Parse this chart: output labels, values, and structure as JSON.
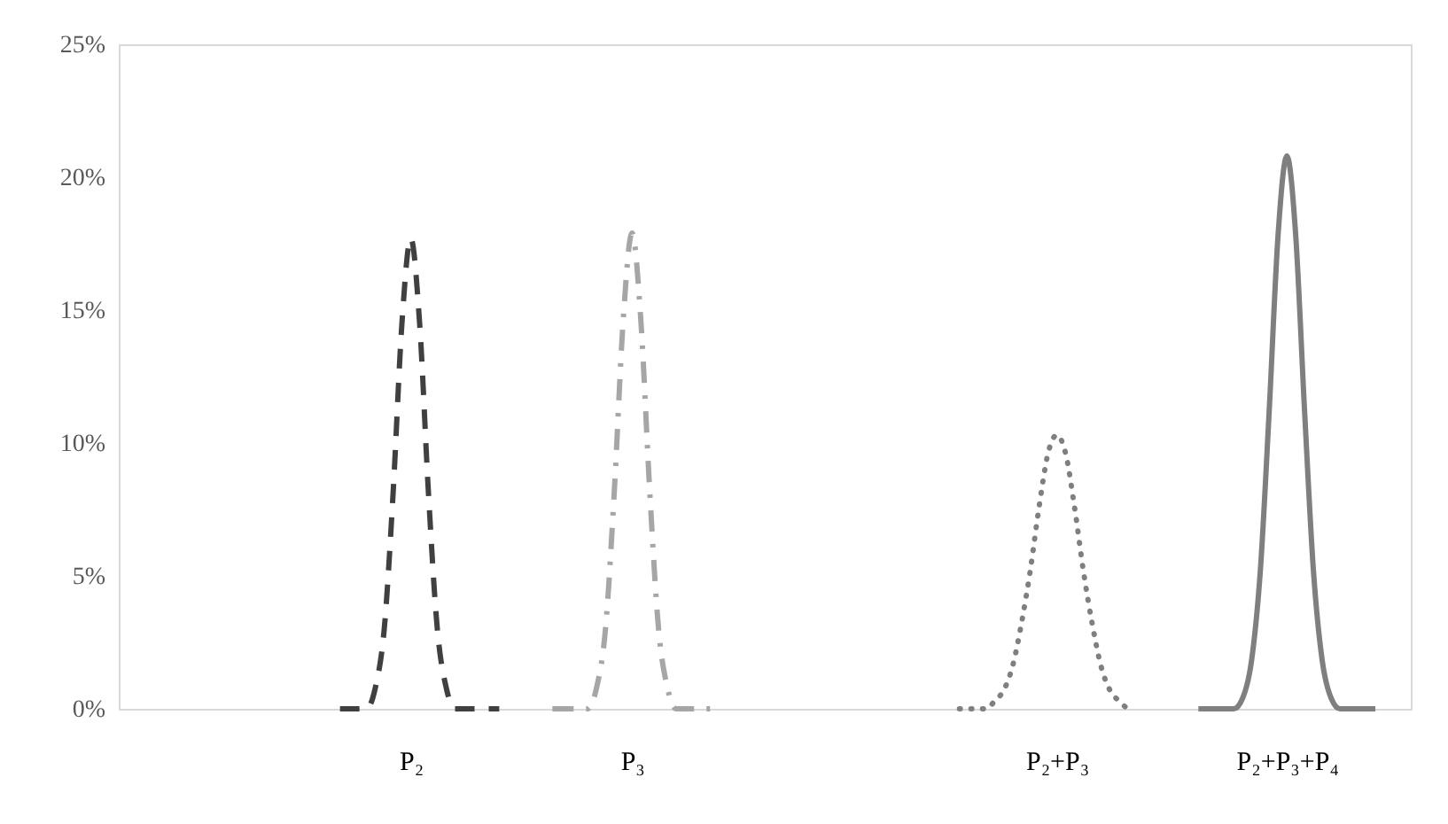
{
  "chart_data": {
    "type": "line",
    "categories": [
      null,
      null,
      null,
      null,
      null,
      null,
      null,
      null,
      null,
      null,
      null,
      null,
      null,
      null,
      null,
      null,
      null,
      null,
      null,
      null,
      null,
      null,
      null,
      null,
      null,
      null,
      null,
      null,
      null,
      null,
      null,
      null,
      null,
      "P₂",
      null,
      null,
      null,
      null,
      null,
      null,
      null,
      null,
      null,
      null,
      null,
      null,
      null,
      null,
      null,
      null,
      null,
      null,
      null,
      null,
      null,
      null,
      null,
      null,
      "P₃",
      null,
      null,
      null,
      null,
      null,
      null,
      null,
      null,
      null,
      null,
      null,
      null,
      null,
      null,
      null,
      null,
      null,
      null,
      null,
      null,
      null,
      null,
      null,
      null,
      null,
      null,
      null,
      null,
      null,
      null,
      null,
      null,
      null,
      null,
      null,
      null,
      null,
      null,
      null,
      null,
      null,
      null,
      null,
      null,
      null,
      null,
      null,
      "P₂+P₃",
      null,
      null,
      null,
      null,
      null,
      null,
      null,
      null,
      null,
      null,
      null,
      null,
      null,
      null,
      null,
      null,
      null,
      null,
      null,
      null,
      null,
      null,
      null,
      null,
      null,
      "P₂+P₃+P₄",
      null,
      null,
      null,
      null,
      null,
      null,
      null,
      null,
      null,
      null,
      null,
      null,
      null,
      null
    ],
    "series": [
      {
        "color": "#404040",
        "line_style": "dashed",
        "values": [
          null,
          null,
          null,
          null,
          null,
          null,
          null,
          null,
          null,
          null,
          null,
          null,
          null,
          null,
          null,
          null,
          null,
          null,
          null,
          null,
          null,
          null,
          null,
          null,
          null,
          0,
          0,
          0,
          0,
          0.8,
          3.0,
          8.1,
          14.5,
          17.7,
          14.5,
          8.1,
          3.0,
          0.8,
          0,
          0,
          0,
          0,
          0,
          0,
          null,
          null,
          null,
          null,
          null,
          null,
          null,
          null,
          null,
          null,
          null,
          null,
          null,
          null,
          null,
          null,
          null,
          null,
          null,
          null,
          null,
          null,
          null,
          null,
          null,
          null,
          null,
          null,
          null,
          null,
          null,
          null,
          null,
          null,
          null,
          null,
          null,
          null,
          null,
          null,
          null,
          null,
          null,
          null,
          null,
          null,
          null,
          null,
          null,
          null,
          null,
          null,
          null,
          null,
          null,
          null,
          null,
          null,
          null,
          null,
          null,
          null,
          null,
          null,
          null,
          null,
          null,
          null,
          null,
          null,
          null,
          null,
          null,
          null,
          null,
          null,
          null,
          null,
          null,
          null,
          null,
          null,
          null,
          null,
          null,
          null,
          null,
          null,
          null,
          null,
          null,
          null,
          null,
          null,
          null,
          null,
          null,
          null,
          null,
          null,
          null,
          null,
          null
        ]
      },
      {
        "color": "#a6a6a6",
        "line_style": "dashdot",
        "values": [
          null,
          null,
          null,
          null,
          null,
          null,
          null,
          null,
          null,
          null,
          null,
          null,
          null,
          null,
          null,
          null,
          null,
          null,
          null,
          null,
          null,
          null,
          null,
          null,
          null,
          null,
          null,
          null,
          null,
          null,
          null,
          null,
          null,
          null,
          null,
          null,
          null,
          null,
          null,
          null,
          null,
          null,
          null,
          null,
          null,
          null,
          null,
          null,
          null,
          0,
          0,
          0,
          0,
          0,
          0.8,
          3.0,
          8.2,
          14.6,
          17.9,
          14.6,
          8.2,
          3.0,
          0.8,
          0,
          0,
          0,
          0,
          0,
          0,
          null,
          null,
          null,
          null,
          null,
          null,
          null,
          null,
          null,
          null,
          null,
          null,
          null,
          null,
          null,
          null,
          null,
          null,
          null,
          null,
          null,
          null,
          null,
          null,
          null,
          null,
          null,
          null,
          null,
          null,
          null,
          null,
          null,
          null,
          null,
          null,
          null,
          null,
          null,
          null,
          null,
          null,
          null,
          null,
          null,
          null,
          null,
          null,
          null,
          null,
          null,
          null,
          null,
          null,
          null,
          null,
          null,
          null,
          null,
          null,
          null,
          null,
          null,
          null,
          null,
          null,
          null,
          null,
          null,
          null,
          null,
          null,
          null,
          null,
          null,
          null,
          null,
          null
        ]
      },
      {
        "color": "#7f7f7f",
        "line_style": "dotted",
        "values": [
          null,
          null,
          null,
          null,
          null,
          null,
          null,
          null,
          null,
          null,
          null,
          null,
          null,
          null,
          null,
          null,
          null,
          null,
          null,
          null,
          null,
          null,
          null,
          null,
          null,
          null,
          null,
          null,
          null,
          null,
          null,
          null,
          null,
          null,
          null,
          null,
          null,
          null,
          null,
          null,
          null,
          null,
          null,
          null,
          null,
          null,
          null,
          null,
          null,
          null,
          null,
          null,
          null,
          null,
          null,
          null,
          null,
          null,
          null,
          null,
          null,
          null,
          null,
          null,
          null,
          null,
          null,
          null,
          null,
          null,
          null,
          null,
          null,
          null,
          null,
          null,
          null,
          null,
          null,
          null,
          null,
          null,
          null,
          null,
          null,
          null,
          null,
          null,
          null,
          null,
          null,
          null,
          null,
          null,
          null,
          0,
          0,
          0,
          0,
          0.3,
          0.7,
          1.6,
          3.2,
          5.2,
          7.6,
          9.6,
          10.3,
          9.6,
          7.6,
          5.2,
          3.2,
          1.6,
          0.7,
          0.3,
          0,
          null,
          null,
          null,
          null,
          null,
          null,
          null,
          null,
          null,
          null,
          null,
          null,
          null,
          null,
          null,
          null,
          null,
          null,
          null,
          null,
          null,
          null,
          null,
          null,
          null,
          null,
          null,
          null,
          null,
          null,
          null,
          null
        ]
      },
      {
        "color": "#7f7f7f",
        "line_style": "solid",
        "values": [
          null,
          null,
          null,
          null,
          null,
          null,
          null,
          null,
          null,
          null,
          null,
          null,
          null,
          null,
          null,
          null,
          null,
          null,
          null,
          null,
          null,
          null,
          null,
          null,
          null,
          null,
          null,
          null,
          null,
          null,
          null,
          null,
          null,
          null,
          null,
          null,
          null,
          null,
          null,
          null,
          null,
          null,
          null,
          null,
          null,
          null,
          null,
          null,
          null,
          null,
          null,
          null,
          null,
          null,
          null,
          null,
          null,
          null,
          null,
          null,
          null,
          null,
          null,
          null,
          null,
          null,
          null,
          null,
          null,
          null,
          null,
          null,
          null,
          null,
          null,
          null,
          null,
          null,
          null,
          null,
          null,
          null,
          null,
          null,
          null,
          null,
          null,
          null,
          null,
          null,
          null,
          null,
          null,
          null,
          null,
          null,
          null,
          null,
          null,
          null,
          null,
          null,
          null,
          null,
          null,
          null,
          null,
          null,
          null,
          null,
          null,
          null,
          null,
          null,
          null,
          null,
          null,
          null,
          null,
          null,
          null,
          null,
          0,
          0,
          0,
          0,
          0,
          0.4,
          1.8,
          5.2,
          11.2,
          17.8,
          20.8,
          17.8,
          11.2,
          5.2,
          1.8,
          0.4,
          0,
          0,
          0,
          0,
          0,
          null,
          null,
          null,
          null
        ]
      }
    ],
    "ylim": [
      0,
      25
    ],
    "yticks": [
      {
        "value": 0,
        "label": "0%"
      },
      {
        "value": 5,
        "label": "5%"
      },
      {
        "value": 10,
        "label": "10%"
      },
      {
        "value": 15,
        "label": "15%"
      },
      {
        "value": 20,
        "label": "20%"
      },
      {
        "value": 25,
        "label": "25%"
      }
    ],
    "grid": false
  }
}
